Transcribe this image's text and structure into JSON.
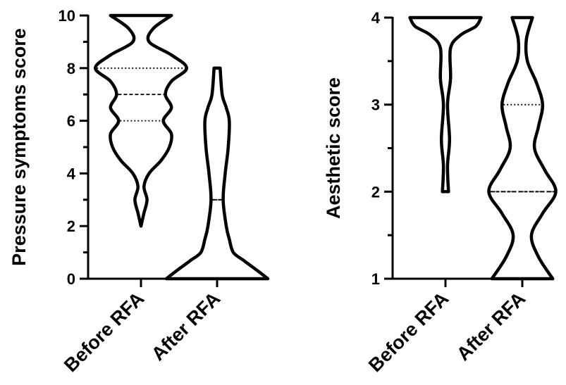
{
  "chart_data": [
    {
      "type": "violin",
      "ylabel": "Pressure symptoms score",
      "ylim": [
        0,
        10
      ],
      "y_ticks": [
        0,
        2,
        4,
        6,
        8,
        10
      ],
      "y_tick_labels": [
        "0",
        "2",
        "4",
        "6",
        "8",
        "10"
      ],
      "y_minor_ticks": [
        1,
        3,
        5,
        7,
        9
      ],
      "categories": [
        "Before RFA",
        "After RFA"
      ],
      "series": [
        {
          "category": "Before RFA",
          "min": 2,
          "q1": 6,
          "median": 7,
          "q3": 8,
          "max": 10,
          "density": [
            [
              2,
              0.0
            ],
            [
              2.5,
              0.03
            ],
            [
              3,
              0.06
            ],
            [
              3.5,
              0.03
            ],
            [
              4,
              0.08
            ],
            [
              4.5,
              0.2
            ],
            [
              5,
              0.28
            ],
            [
              5.5,
              0.3
            ],
            [
              6,
              0.22
            ],
            [
              6.5,
              0.3
            ],
            [
              7,
              0.24
            ],
            [
              7.5,
              0.3
            ],
            [
              8,
              0.45
            ],
            [
              8.5,
              0.3
            ],
            [
              9,
              0.08
            ],
            [
              9.5,
              0.12
            ],
            [
              10,
              0.3
            ]
          ]
        },
        {
          "category": "After RFA",
          "min": 0,
          "q1": 0,
          "median": 3,
          "q3": 3,
          "max": 8,
          "density": [
            [
              0,
              0.5
            ],
            [
              0.3,
              0.4
            ],
            [
              0.7,
              0.26
            ],
            [
              1,
              0.16
            ],
            [
              1.5,
              0.12
            ],
            [
              2,
              0.09
            ],
            [
              3,
              0.06
            ],
            [
              4,
              0.08
            ],
            [
              5,
              0.11
            ],
            [
              6,
              0.12
            ],
            [
              6.5,
              0.09
            ],
            [
              7,
              0.05
            ],
            [
              8,
              0.03
            ]
          ]
        }
      ]
    },
    {
      "type": "violin",
      "ylabel": "Aesthetic score",
      "ylim": [
        1,
        4
      ],
      "y_ticks": [
        1,
        2,
        3,
        4
      ],
      "y_tick_labels": [
        "1",
        "2",
        "3",
        "4"
      ],
      "y_minor_ticks": [
        1.5,
        2.5,
        3.5
      ],
      "categories": [
        "Before RFA",
        "After RFA"
      ],
      "series": [
        {
          "category": "Before RFA",
          "min": 2,
          "q1": 4,
          "median": 4,
          "q3": 4,
          "max": 4,
          "density": [
            [
              2,
              0.03
            ],
            [
              2.3,
              0.02
            ],
            [
              2.6,
              0.04
            ],
            [
              3,
              0.02
            ],
            [
              3.3,
              0.05
            ],
            [
              3.65,
              0.05
            ],
            [
              3.8,
              0.15
            ],
            [
              3.9,
              0.3
            ],
            [
              4,
              0.35
            ]
          ]
        },
        {
          "category": "After RFA",
          "min": 1,
          "q1": 2,
          "median": 2,
          "q3": 3,
          "max": 4,
          "density": [
            [
              1,
              0.3
            ],
            [
              1.25,
              0.16
            ],
            [
              1.5,
              0.09
            ],
            [
              1.75,
              0.2
            ],
            [
              2,
              0.33
            ],
            [
              2.25,
              0.22
            ],
            [
              2.5,
              0.12
            ],
            [
              2.75,
              0.16
            ],
            [
              3,
              0.2
            ],
            [
              3.25,
              0.14
            ],
            [
              3.5,
              0.05
            ],
            [
              3.75,
              0.04
            ],
            [
              4,
              0.1
            ]
          ]
        }
      ]
    }
  ]
}
